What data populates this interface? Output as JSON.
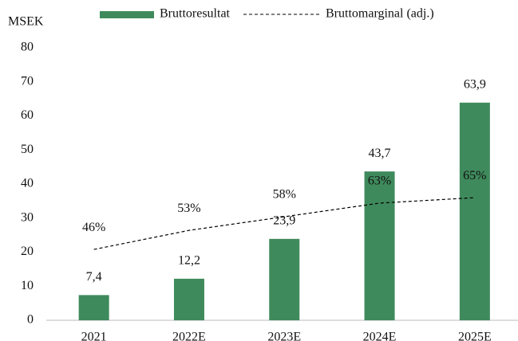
{
  "chart_data": {
    "type": "bar",
    "y_axis_label": "MSEK",
    "categories": [
      "2021",
      "2022E",
      "2023E",
      "2024E",
      "2025E"
    ],
    "series": [
      {
        "name": "Bruttoresultat",
        "type": "bar",
        "color": "#3f8a5c",
        "values": [
          7.4,
          12.2,
          23.9,
          43.7,
          63.9
        ],
        "value_labels": [
          "7,4",
          "12,2",
          "23,9",
          "43,7",
          "63,9"
        ]
      },
      {
        "name": "Bruttomarginal (adj.)",
        "type": "line",
        "axis": "y2",
        "dashed": true,
        "color": "#000000",
        "values": [
          46,
          53,
          58,
          63,
          65
        ],
        "value_labels": [
          "46%",
          "53%",
          "58%",
          "63%",
          "65%"
        ]
      }
    ],
    "ylim": [
      0,
      80
    ],
    "yticks": [
      0,
      10,
      20,
      30,
      40,
      50,
      60,
      70,
      80
    ],
    "y2lim": [
      20,
      120
    ],
    "grid": false,
    "legend": "top"
  }
}
